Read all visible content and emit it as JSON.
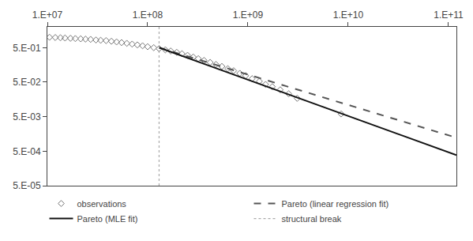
{
  "chart_data": {
    "type": "scatter",
    "log": true,
    "grid": false,
    "legend": "bottom",
    "xlim": [
      10000000.0,
      120000000000.0
    ],
    "ylim": [
      5e-05,
      2.0
    ],
    "xticks": [
      {
        "value": 10000000.0,
        "label": "1.E+07"
      },
      {
        "value": 100000000.0,
        "label": "1.E+08"
      },
      {
        "value": 1000000000.0,
        "label": "1.E+09"
      },
      {
        "value": 10000000000.0,
        "label": "1.E+10"
      },
      {
        "value": 100000000000.0,
        "label": "1.E+11"
      }
    ],
    "yticks": [
      {
        "value": 5e-05,
        "label": "5.E-05"
      },
      {
        "value": 0.0005,
        "label": "5.E-04"
      },
      {
        "value": 0.005,
        "label": "5.E-03"
      },
      {
        "value": 0.05,
        "label": "5.E-02"
      },
      {
        "value": 0.5,
        "label": "5.E-01"
      }
    ],
    "series": [
      {
        "name": "observations",
        "type": "scatter",
        "marker": "diamond-open",
        "color": "#777777",
        "x": [
          10500000.0,
          12000000.0,
          13500000.0,
          15000000.0,
          17000000.0,
          19000000.0,
          21500000.0,
          24000000.0,
          27000000.0,
          30500000.0,
          34000000.0,
          38500000.0,
          43500000.0,
          49000000.0,
          55000000.0,
          62000000.0,
          70000000.0,
          79000000.0,
          89000000.0,
          100000000.0,
          115000000.0,
          130000000.0,
          150000000.0,
          170000000.0,
          195000000.0,
          220000000.0,
          250000000.0,
          285000000.0,
          320000000.0,
          365000000.0,
          420000000.0,
          480000000.0,
          550000000.0,
          630000000.0,
          720000000.0,
          830000000.0,
          950000000.0,
          1100000000.0,
          1300000000.0,
          1500000000.0,
          1750000000.0,
          2100000000.0,
          2550000000.0,
          3100000000.0,
          8500000000.0
        ],
        "values": [
          1.0,
          0.983,
          0.967,
          0.95,
          0.933,
          0.917,
          0.9,
          0.883,
          0.867,
          0.833,
          0.817,
          0.8,
          0.767,
          0.733,
          0.7,
          0.667,
          0.633,
          0.6,
          0.567,
          0.533,
          0.5,
          0.467,
          0.433,
          0.4,
          0.367,
          0.333,
          0.3,
          0.267,
          0.24,
          0.213,
          0.187,
          0.163,
          0.143,
          0.123,
          0.107,
          0.09,
          0.077,
          0.063,
          0.053,
          0.043,
          0.037,
          0.03,
          0.023,
          0.017,
          0.006
        ]
      },
      {
        "name": "Pareto (linear regression fit)",
        "type": "line",
        "line_style": "dashed",
        "color": "#555555",
        "x": [
          130000000.0,
          120000000000.0
        ],
        "values": [
          0.5,
          0.00122903
        ]
      },
      {
        "name": "Pareto (MLE fit)",
        "type": "line",
        "line_style": "solid",
        "color": "#111111",
        "x": [
          130000000.0,
          120000000000.0
        ],
        "values": [
          0.5,
          0.000385008
        ]
      },
      {
        "name": "structural break",
        "type": "vline",
        "line_style": "dotted",
        "color": "#aaaaaa",
        "x": 130000000.0
      }
    ]
  }
}
